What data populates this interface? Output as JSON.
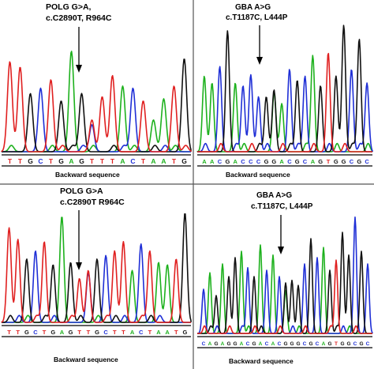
{
  "colors": {
    "A": "#1db11d",
    "C": "#1f2fd6",
    "G": "#111111",
    "T": "#e02020",
    "divider": "#555555"
  },
  "panels": [
    {
      "id": "top-left",
      "label_lines": [
        "POLG G>A,",
        "c.C2890T,  R964C"
      ],
      "caption": "Backward sequence",
      "sequence": "TTGCTGAGTTTACTAATG",
      "mutant_index": 8,
      "heights": [
        0.85,
        0.8,
        0.55,
        0.6,
        0.68,
        0.48,
        0.95,
        0.55,
        0.3,
        0.52,
        0.72,
        0.62,
        0.6,
        0.48,
        0.3,
        0.5,
        0.62,
        0.88
      ]
    },
    {
      "id": "top-right",
      "label_lines": [
        "GBA A>G",
        "c.T1187C, L444P"
      ],
      "caption": "Backward sequence",
      "sequence": "AACGACCCGGACGCAGTGGCGC",
      "mutant_index": 9,
      "heights": [
        0.55,
        0.5,
        0.62,
        0.88,
        0.5,
        0.48,
        0.56,
        0.4,
        0.4,
        0.45,
        0.35,
        0.6,
        0.52,
        0.55,
        0.7,
        0.48,
        0.72,
        0.55,
        0.92,
        0.6,
        0.82,
        0.5
      ]
    },
    {
      "id": "bottom-left",
      "label_lines": [
        "POLG G>A",
        "c.C2890T  R964C"
      ],
      "caption": "Backward sequence",
      "sequence": "TTGCTGAGTTGCTTACTAATG",
      "mutant_index": 9,
      "heights": [
        0.82,
        0.72,
        0.55,
        0.62,
        0.7,
        0.5,
        0.92,
        0.52,
        0.38,
        0.45,
        0.55,
        0.58,
        0.62,
        0.7,
        0.45,
        0.68,
        0.62,
        0.52,
        0.5,
        0.55,
        0.95
      ]
    },
    {
      "id": "bottom-right",
      "label_lines": [
        "GBA A>G",
        "c.T1187C, L444P"
      ],
      "caption": "Backward sequence",
      "sequence": "CAGAGGACGACACGGGCGCAGTGGCGC",
      "mutant_index": 13,
      "heights": [
        0.35,
        0.48,
        0.3,
        0.55,
        0.45,
        0.6,
        0.65,
        0.52,
        0.45,
        0.7,
        0.5,
        0.62,
        0.45,
        0.4,
        0.42,
        0.38,
        0.55,
        0.75,
        0.6,
        0.68,
        0.5,
        0.58,
        0.8,
        0.62,
        0.92,
        0.65,
        0.55
      ]
    }
  ]
}
